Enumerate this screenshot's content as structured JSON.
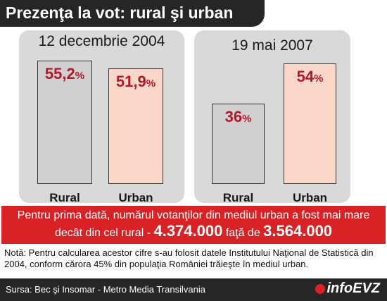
{
  "header": {
    "title": "Prezenţa la vot: rural şi urban"
  },
  "chart_data": [
    {
      "type": "bar",
      "title": "12 decembrie 2004",
      "categories": [
        "Rural",
        "Urban"
      ],
      "values": [
        55.2,
        51.9
      ],
      "value_labels": [
        {
          "num": "55,2",
          "pct": "%"
        },
        {
          "num": "51,9",
          "pct": "%"
        }
      ],
      "ylim": [
        0,
        60
      ],
      "colors": [
        "#d0d0d0",
        "#fbd7c9"
      ],
      "grid": false
    },
    {
      "type": "bar",
      "title": "19 mai 2007",
      "categories": [
        "Rural",
        "Urban"
      ],
      "values": [
        36,
        54
      ],
      "value_labels": [
        {
          "num": "36",
          "pct": "%"
        },
        {
          "num": "54",
          "pct": "%"
        }
      ],
      "ylim": [
        0,
        60
      ],
      "colors": [
        "#d0d0d0",
        "#fbd7c9"
      ],
      "grid": false
    }
  ],
  "callout": {
    "line1": "Pentru prima dată, numărul votanţilor din mediul urban a fost mai mare",
    "line2_prefix": "decât din cel rural - ",
    "value_urban": "4.374.000",
    "line2_mid": " faţă de ",
    "value_rural": "3.564.000",
    "color": "#d92226"
  },
  "note": "Notă: Pentru calcularea acestor cifre s-au folosit datele Institutului Naţional de Statistică din 2004, conform cărora 45% din populaţia României trăieşte în mediul urban.",
  "footer": {
    "source": "Sursa: Bec şi Insomar - Metro Media Transilvania",
    "logo_text": "infoEVZ",
    "logo_icon": "red-dot-icon"
  }
}
